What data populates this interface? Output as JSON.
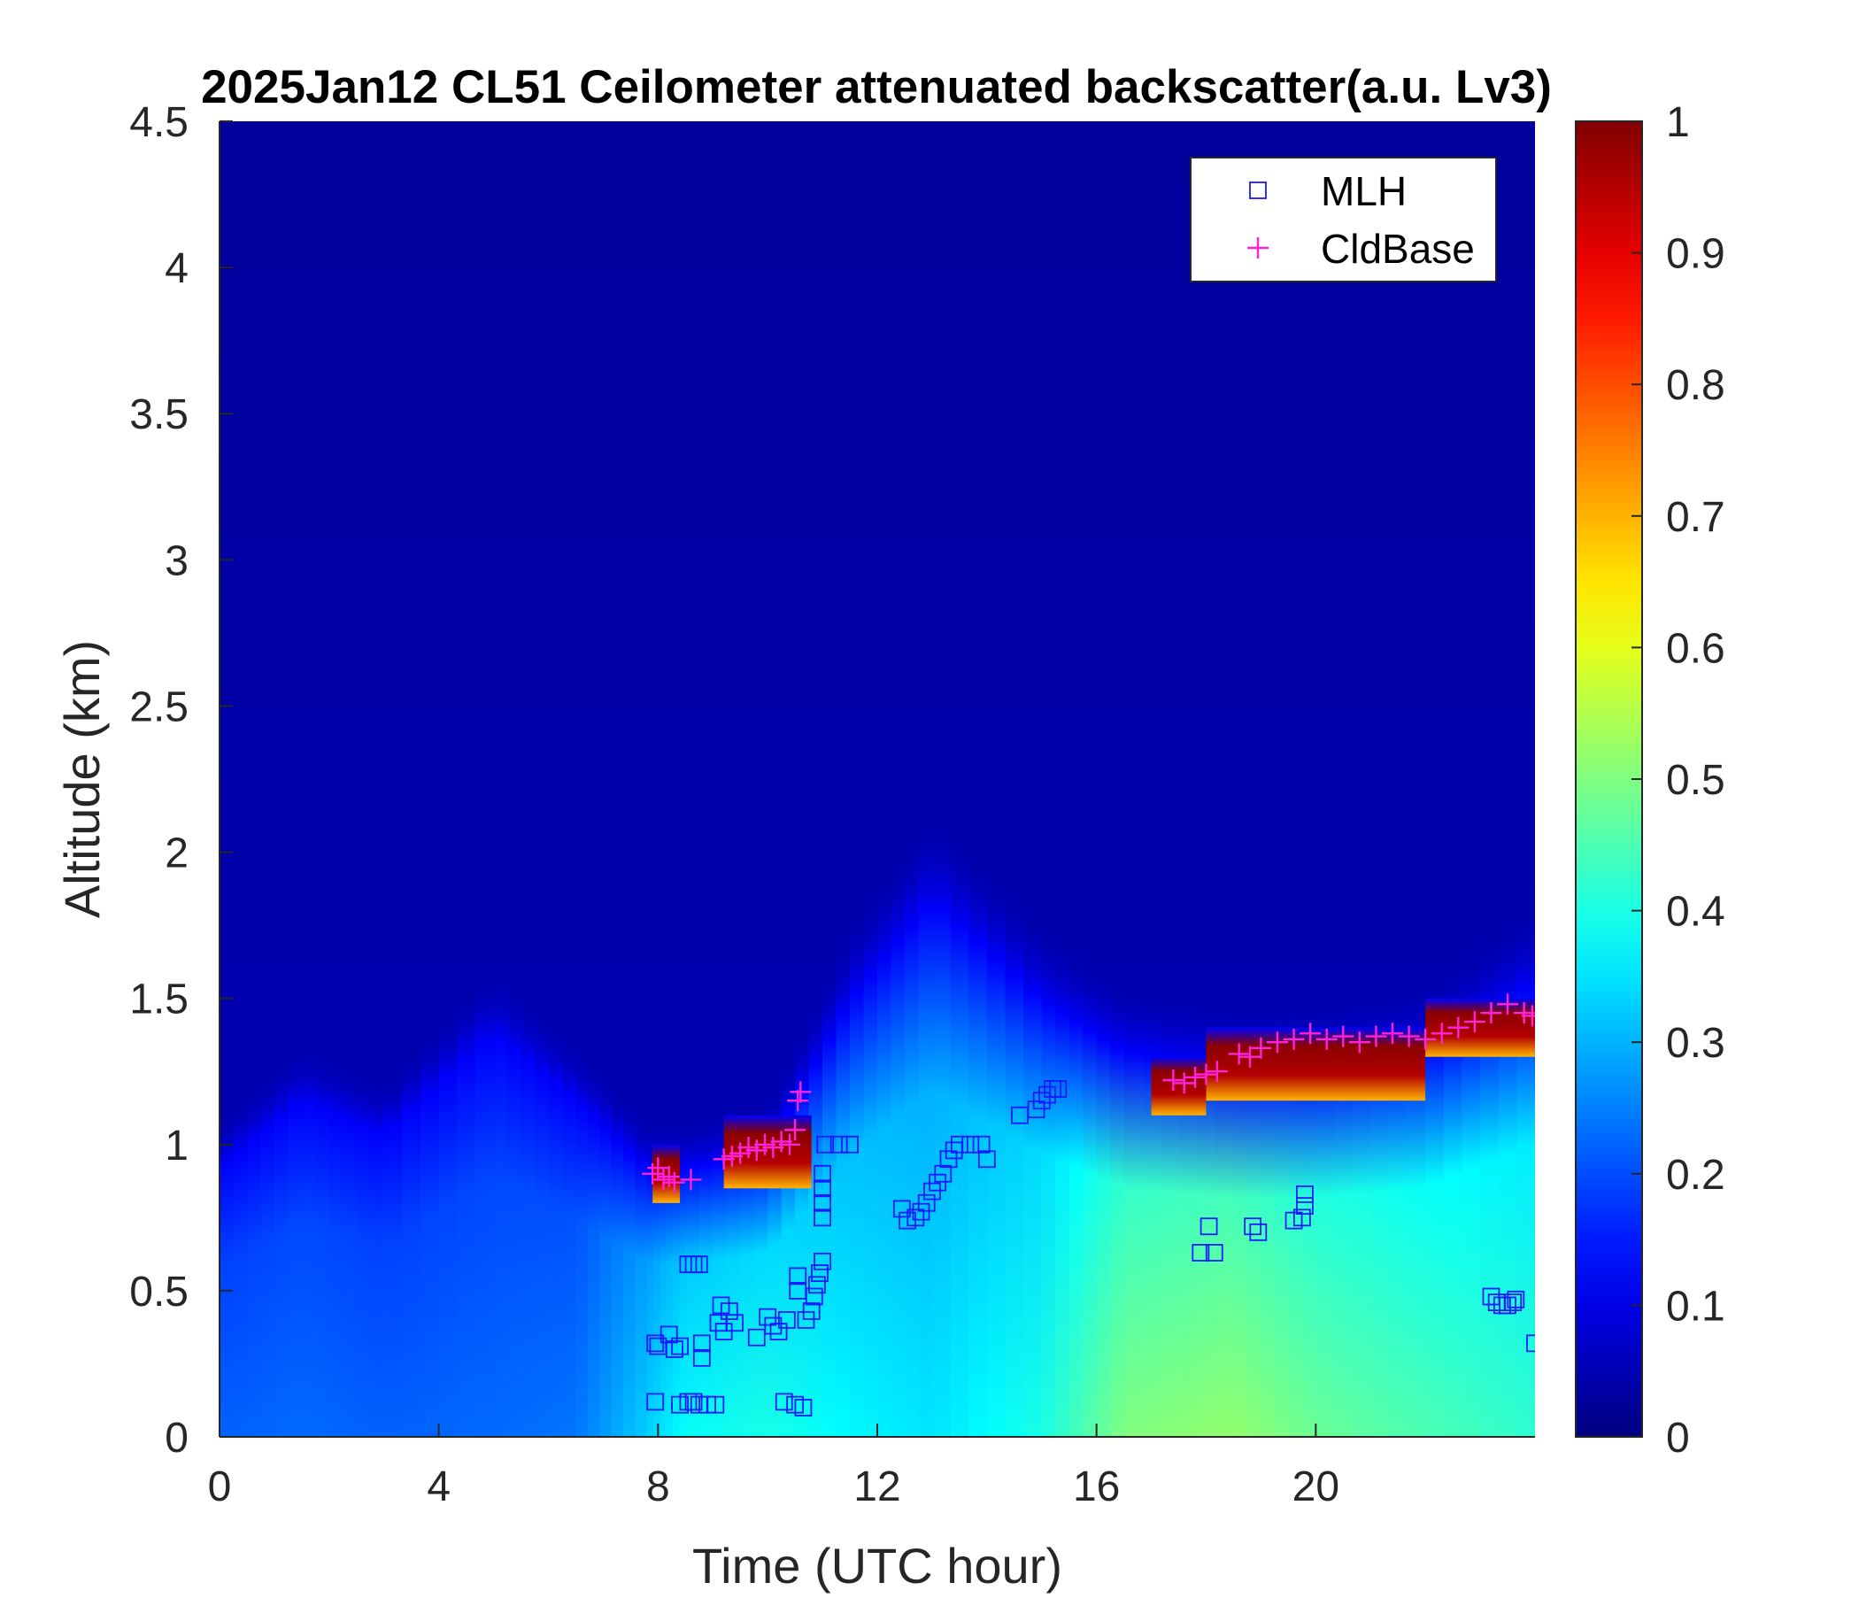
{
  "chart_data": {
    "type": "heatmap",
    "title": "2025Jan12 CL51 Ceilometer attenuated backscatter(a.u. Lv3)",
    "xlabel": "Time (UTC hour)",
    "ylabel": "Altitude (km)",
    "xlim": [
      0,
      24
    ],
    "ylim": [
      0,
      4.5
    ],
    "x_ticks": [
      0,
      4,
      8,
      12,
      16,
      20
    ],
    "y_ticks": [
      0,
      0.5,
      1,
      1.5,
      2,
      2.5,
      3,
      3.5,
      4,
      4.5
    ],
    "x_tick_labels": [
      "0",
      "4",
      "8",
      "12",
      "16",
      "20"
    ],
    "y_tick_labels": [
      "0",
      "0.5",
      "1",
      "1.5",
      "2",
      "2.5",
      "3",
      "3.5",
      "4",
      "4.5"
    ],
    "colorbar": {
      "colormap": "jet",
      "range": [
        0,
        1
      ],
      "ticks": [
        0,
        0.1,
        0.2,
        0.3,
        0.4,
        0.5,
        0.6,
        0.7,
        0.8,
        0.9,
        1
      ],
      "tick_labels": [
        "0",
        "0.1",
        "0.2",
        "0.3",
        "0.4",
        "0.5",
        "0.6",
        "0.7",
        "0.8",
        "0.9",
        "1"
      ]
    },
    "legend": {
      "placement": "top-right",
      "entries": [
        {
          "label": "MLH",
          "marker": "square",
          "color": "#1a1aff"
        },
        {
          "label": "CldBase",
          "marker": "plus",
          "color": "#ff22dd"
        }
      ]
    },
    "background_profiles": [
      {
        "x": 0,
        "top_km": 0.8,
        "value": 0.22
      },
      {
        "x": 1.5,
        "top_km": 1.0,
        "value": 0.23
      },
      {
        "x": 3,
        "top_km": 0.9,
        "value": 0.22
      },
      {
        "x": 5,
        "top_km": 1.2,
        "value": 0.23
      },
      {
        "x": 6.5,
        "top_km": 1.0,
        "value": 0.24
      },
      {
        "x": 7.8,
        "top_km": 0.8,
        "value": 0.33
      },
      {
        "x": 8.5,
        "top_km": 0.8,
        "value": 0.38
      },
      {
        "x": 10,
        "top_km": 0.85,
        "value": 0.4
      },
      {
        "x": 11.5,
        "top_km": 1.3,
        "value": 0.37
      },
      {
        "x": 13,
        "top_km": 1.6,
        "value": 0.35
      },
      {
        "x": 15,
        "top_km": 1.3,
        "value": 0.4
      },
      {
        "x": 16.5,
        "top_km": 1.15,
        "value": 0.5
      },
      {
        "x": 18.5,
        "top_km": 1.1,
        "value": 0.52
      },
      {
        "x": 20,
        "top_km": 1.1,
        "value": 0.48
      },
      {
        "x": 22,
        "top_km": 1.15,
        "value": 0.45
      },
      {
        "x": 24,
        "top_km": 1.35,
        "value": 0.42
      }
    ],
    "cloud_layers": [
      {
        "x_start": 7.9,
        "x_end": 8.4,
        "base_km": 0.8,
        "top_km": 1.0,
        "value": 0.95
      },
      {
        "x_start": 9.2,
        "x_end": 10.8,
        "base_km": 0.85,
        "top_km": 1.1,
        "value": 0.95
      },
      {
        "x_start": 17.0,
        "x_end": 18.0,
        "base_km": 1.1,
        "top_km": 1.3,
        "value": 0.95
      },
      {
        "x_start": 18.0,
        "x_end": 22.0,
        "base_km": 1.15,
        "top_km": 1.4,
        "value": 0.95
      },
      {
        "x_start": 22.0,
        "x_end": 24.0,
        "base_km": 1.3,
        "top_km": 1.5,
        "value": 0.95
      }
    ],
    "series": [
      {
        "name": "MLH",
        "marker": "square",
        "color": "#1a1aff",
        "points": [
          [
            7.95,
            0.12
          ],
          [
            7.95,
            0.32
          ],
          [
            8.0,
            0.31
          ],
          [
            8.2,
            0.35
          ],
          [
            8.3,
            0.3
          ],
          [
            8.4,
            0.31
          ],
          [
            8.4,
            0.11
          ],
          [
            8.55,
            0.12
          ],
          [
            8.65,
            0.12
          ],
          [
            8.75,
            0.11
          ],
          [
            8.9,
            0.11
          ],
          [
            9.05,
            0.11
          ],
          [
            8.55,
            0.59
          ],
          [
            8.65,
            0.59
          ],
          [
            8.75,
            0.59
          ],
          [
            8.8,
            0.32
          ],
          [
            8.8,
            0.27
          ],
          [
            9.1,
            0.39
          ],
          [
            9.15,
            0.45
          ],
          [
            9.2,
            0.36
          ],
          [
            9.3,
            0.43
          ],
          [
            9.4,
            0.39
          ],
          [
            9.8,
            0.34
          ],
          [
            10.0,
            0.41
          ],
          [
            10.1,
            0.38
          ],
          [
            10.2,
            0.36
          ],
          [
            10.35,
            0.4
          ],
          [
            10.3,
            0.12
          ],
          [
            10.5,
            0.11
          ],
          [
            10.65,
            0.1
          ],
          [
            10.55,
            0.5
          ],
          [
            10.55,
            0.55
          ],
          [
            10.7,
            0.4
          ],
          [
            10.8,
            0.43
          ],
          [
            10.85,
            0.48
          ],
          [
            10.9,
            0.52
          ],
          [
            10.95,
            0.56
          ],
          [
            11.0,
            0.6
          ],
          [
            11.0,
            0.75
          ],
          [
            11.0,
            0.8
          ],
          [
            11.0,
            0.85
          ],
          [
            11.0,
            0.9
          ],
          [
            11.05,
            1.0
          ],
          [
            11.3,
            1.0
          ],
          [
            11.5,
            1.0
          ],
          [
            12.45,
            0.78
          ],
          [
            12.55,
            0.74
          ],
          [
            12.7,
            0.75
          ],
          [
            12.8,
            0.77
          ],
          [
            12.9,
            0.8
          ],
          [
            13.0,
            0.84
          ],
          [
            13.1,
            0.87
          ],
          [
            13.2,
            0.9
          ],
          [
            13.3,
            0.95
          ],
          [
            13.4,
            0.98
          ],
          [
            13.5,
            1.0
          ],
          [
            13.7,
            1.0
          ],
          [
            13.9,
            1.0
          ],
          [
            14.0,
            0.95
          ],
          [
            14.6,
            1.1
          ],
          [
            14.9,
            1.12
          ],
          [
            15.0,
            1.15
          ],
          [
            15.1,
            1.17
          ],
          [
            15.2,
            1.19
          ],
          [
            15.3,
            1.19
          ],
          [
            17.9,
            0.63
          ],
          [
            18.05,
            0.72
          ],
          [
            18.15,
            0.63
          ],
          [
            18.85,
            0.72
          ],
          [
            18.95,
            0.7
          ],
          [
            19.6,
            0.74
          ],
          [
            19.75,
            0.75
          ],
          [
            19.8,
            0.79
          ],
          [
            19.8,
            0.83
          ],
          [
            23.2,
            0.48
          ],
          [
            23.3,
            0.46
          ],
          [
            23.4,
            0.45
          ],
          [
            23.5,
            0.45
          ],
          [
            23.6,
            0.46
          ],
          [
            23.65,
            0.47
          ],
          [
            24.0,
            0.32
          ]
        ]
      },
      {
        "name": "CldBase",
        "marker": "plus",
        "color": "#ff22dd",
        "points": [
          [
            7.9,
            0.9
          ],
          [
            8.0,
            0.92
          ],
          [
            8.1,
            0.88
          ],
          [
            8.2,
            0.89
          ],
          [
            8.3,
            0.87
          ],
          [
            8.6,
            0.88
          ],
          [
            9.2,
            0.95
          ],
          [
            9.35,
            0.96
          ],
          [
            9.5,
            0.97
          ],
          [
            9.65,
            0.99
          ],
          [
            9.8,
            0.98
          ],
          [
            9.95,
            1.0
          ],
          [
            10.1,
            0.99
          ],
          [
            10.25,
            1.01
          ],
          [
            10.4,
            1.0
          ],
          [
            10.5,
            1.05
          ],
          [
            10.55,
            1.15
          ],
          [
            10.6,
            1.18
          ],
          [
            17.4,
            1.22
          ],
          [
            17.6,
            1.21
          ],
          [
            17.8,
            1.23
          ],
          [
            18.0,
            1.24
          ],
          [
            18.2,
            1.25
          ],
          [
            18.6,
            1.31
          ],
          [
            18.8,
            1.3
          ],
          [
            19.0,
            1.33
          ],
          [
            19.3,
            1.35
          ],
          [
            19.6,
            1.36
          ],
          [
            19.9,
            1.38
          ],
          [
            20.2,
            1.36
          ],
          [
            20.5,
            1.37
          ],
          [
            20.8,
            1.35
          ],
          [
            21.1,
            1.37
          ],
          [
            21.4,
            1.38
          ],
          [
            21.7,
            1.37
          ],
          [
            22.0,
            1.36
          ],
          [
            22.3,
            1.38
          ],
          [
            22.6,
            1.4
          ],
          [
            22.9,
            1.42
          ],
          [
            23.2,
            1.45
          ],
          [
            23.5,
            1.48
          ],
          [
            23.8,
            1.45
          ],
          [
            23.95,
            1.44
          ]
        ]
      }
    ]
  }
}
